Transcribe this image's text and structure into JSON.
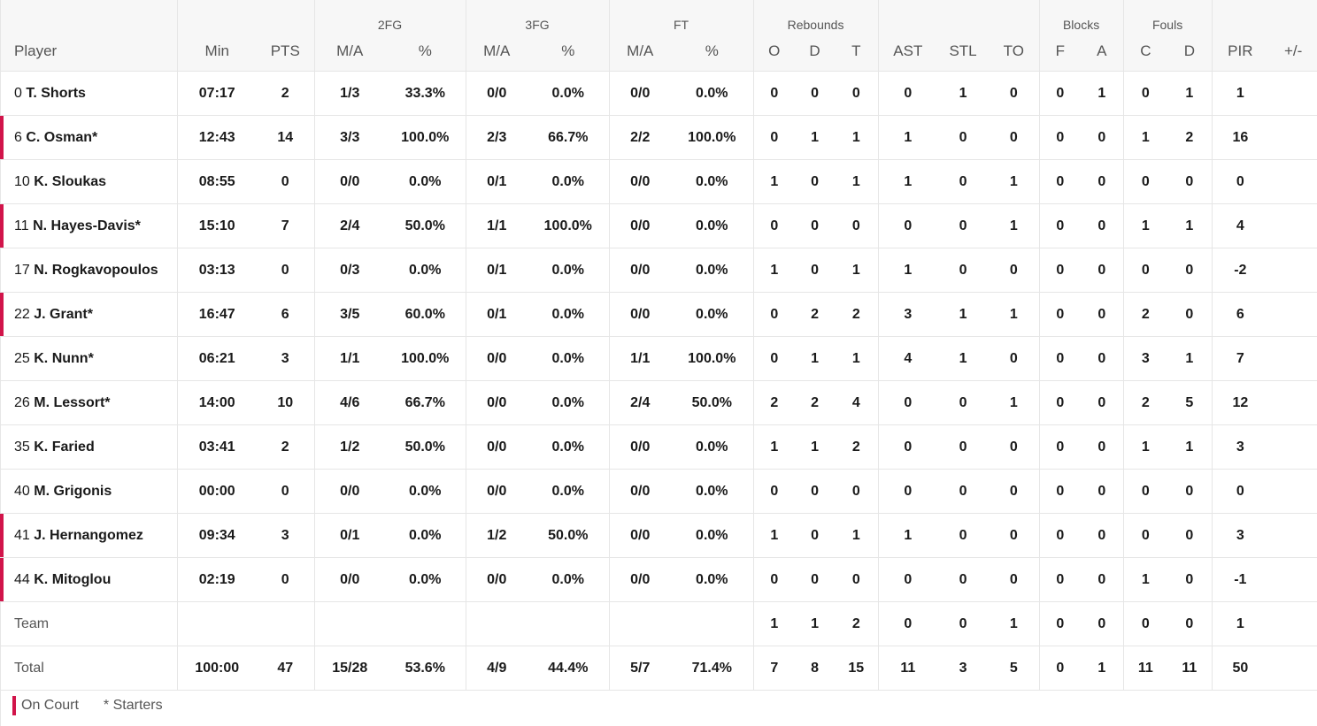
{
  "header_groups": {
    "fg2": "2FG",
    "fg3": "3FG",
    "ft": "FT",
    "rebounds": "Rebounds",
    "blocks": "Blocks",
    "fouls": "Fouls"
  },
  "columns": {
    "player": "Player",
    "min": "Min",
    "pts": "PTS",
    "fg2_ma": "M/A",
    "fg2_pct": "%",
    "fg3_ma": "M/A",
    "fg3_pct": "%",
    "ft_ma": "M/A",
    "ft_pct": "%",
    "reb_o": "O",
    "reb_d": "D",
    "reb_t": "T",
    "ast": "AST",
    "stl": "STL",
    "to": "TO",
    "blk_f": "F",
    "blk_a": "A",
    "foul_c": "C",
    "foul_d": "D",
    "pir": "PIR",
    "pm": "+/-"
  },
  "rows": [
    {
      "num": "0",
      "name": "T. Shorts",
      "oncourt": false,
      "min": "07:17",
      "pts": "2",
      "fg2_ma": "1/3",
      "fg2_pct": "33.3%",
      "fg3_ma": "0/0",
      "fg3_pct": "0.0%",
      "ft_ma": "0/0",
      "ft_pct": "0.0%",
      "reb_o": "0",
      "reb_d": "0",
      "reb_t": "0",
      "ast": "0",
      "stl": "1",
      "to": "0",
      "blk_f": "0",
      "blk_a": "1",
      "foul_c": "0",
      "foul_d": "1",
      "pir": "1",
      "pm": ""
    },
    {
      "num": "6",
      "name": "C. Osman*",
      "oncourt": true,
      "min": "12:43",
      "pts": "14",
      "fg2_ma": "3/3",
      "fg2_pct": "100.0%",
      "fg3_ma": "2/3",
      "fg3_pct": "66.7%",
      "ft_ma": "2/2",
      "ft_pct": "100.0%",
      "reb_o": "0",
      "reb_d": "1",
      "reb_t": "1",
      "ast": "1",
      "stl": "0",
      "to": "0",
      "blk_f": "0",
      "blk_a": "0",
      "foul_c": "1",
      "foul_d": "2",
      "pir": "16",
      "pm": ""
    },
    {
      "num": "10",
      "name": "K. Sloukas",
      "oncourt": false,
      "min": "08:55",
      "pts": "0",
      "fg2_ma": "0/0",
      "fg2_pct": "0.0%",
      "fg3_ma": "0/1",
      "fg3_pct": "0.0%",
      "ft_ma": "0/0",
      "ft_pct": "0.0%",
      "reb_o": "1",
      "reb_d": "0",
      "reb_t": "1",
      "ast": "1",
      "stl": "0",
      "to": "1",
      "blk_f": "0",
      "blk_a": "0",
      "foul_c": "0",
      "foul_d": "0",
      "pir": "0",
      "pm": ""
    },
    {
      "num": "11",
      "name": "N. Hayes-Davis*",
      "oncourt": true,
      "min": "15:10",
      "pts": "7",
      "fg2_ma": "2/4",
      "fg2_pct": "50.0%",
      "fg3_ma": "1/1",
      "fg3_pct": "100.0%",
      "ft_ma": "0/0",
      "ft_pct": "0.0%",
      "reb_o": "0",
      "reb_d": "0",
      "reb_t": "0",
      "ast": "0",
      "stl": "0",
      "to": "1",
      "blk_f": "0",
      "blk_a": "0",
      "foul_c": "1",
      "foul_d": "1",
      "pir": "4",
      "pm": ""
    },
    {
      "num": "17",
      "name": "N. Rogkavopoulos",
      "oncourt": false,
      "min": "03:13",
      "pts": "0",
      "fg2_ma": "0/3",
      "fg2_pct": "0.0%",
      "fg3_ma": "0/1",
      "fg3_pct": "0.0%",
      "ft_ma": "0/0",
      "ft_pct": "0.0%",
      "reb_o": "1",
      "reb_d": "0",
      "reb_t": "1",
      "ast": "1",
      "stl": "0",
      "to": "0",
      "blk_f": "0",
      "blk_a": "0",
      "foul_c": "0",
      "foul_d": "0",
      "pir": "-2",
      "pm": ""
    },
    {
      "num": "22",
      "name": "J. Grant*",
      "oncourt": true,
      "min": "16:47",
      "pts": "6",
      "fg2_ma": "3/5",
      "fg2_pct": "60.0%",
      "fg3_ma": "0/1",
      "fg3_pct": "0.0%",
      "ft_ma": "0/0",
      "ft_pct": "0.0%",
      "reb_o": "0",
      "reb_d": "2",
      "reb_t": "2",
      "ast": "3",
      "stl": "1",
      "to": "1",
      "blk_f": "0",
      "blk_a": "0",
      "foul_c": "2",
      "foul_d": "0",
      "pir": "6",
      "pm": ""
    },
    {
      "num": "25",
      "name": "K. Nunn*",
      "oncourt": false,
      "min": "06:21",
      "pts": "3",
      "fg2_ma": "1/1",
      "fg2_pct": "100.0%",
      "fg3_ma": "0/0",
      "fg3_pct": "0.0%",
      "ft_ma": "1/1",
      "ft_pct": "100.0%",
      "reb_o": "0",
      "reb_d": "1",
      "reb_t": "1",
      "ast": "4",
      "stl": "1",
      "to": "0",
      "blk_f": "0",
      "blk_a": "0",
      "foul_c": "3",
      "foul_d": "1",
      "pir": "7",
      "pm": ""
    },
    {
      "num": "26",
      "name": "M. Lessort*",
      "oncourt": false,
      "min": "14:00",
      "pts": "10",
      "fg2_ma": "4/6",
      "fg2_pct": "66.7%",
      "fg3_ma": "0/0",
      "fg3_pct": "0.0%",
      "ft_ma": "2/4",
      "ft_pct": "50.0%",
      "reb_o": "2",
      "reb_d": "2",
      "reb_t": "4",
      "ast": "0",
      "stl": "0",
      "to": "1",
      "blk_f": "0",
      "blk_a": "0",
      "foul_c": "2",
      "foul_d": "5",
      "pir": "12",
      "pm": ""
    },
    {
      "num": "35",
      "name": "K. Faried",
      "oncourt": false,
      "min": "03:41",
      "pts": "2",
      "fg2_ma": "1/2",
      "fg2_pct": "50.0%",
      "fg3_ma": "0/0",
      "fg3_pct": "0.0%",
      "ft_ma": "0/0",
      "ft_pct": "0.0%",
      "reb_o": "1",
      "reb_d": "1",
      "reb_t": "2",
      "ast": "0",
      "stl": "0",
      "to": "0",
      "blk_f": "0",
      "blk_a": "0",
      "foul_c": "1",
      "foul_d": "1",
      "pir": "3",
      "pm": ""
    },
    {
      "num": "40",
      "name": "M. Grigonis",
      "oncourt": false,
      "min": "00:00",
      "pts": "0",
      "fg2_ma": "0/0",
      "fg2_pct": "0.0%",
      "fg3_ma": "0/0",
      "fg3_pct": "0.0%",
      "ft_ma": "0/0",
      "ft_pct": "0.0%",
      "reb_o": "0",
      "reb_d": "0",
      "reb_t": "0",
      "ast": "0",
      "stl": "0",
      "to": "0",
      "blk_f": "0",
      "blk_a": "0",
      "foul_c": "0",
      "foul_d": "0",
      "pir": "0",
      "pm": ""
    },
    {
      "num": "41",
      "name": "J. Hernangomez",
      "oncourt": true,
      "min": "09:34",
      "pts": "3",
      "fg2_ma": "0/1",
      "fg2_pct": "0.0%",
      "fg3_ma": "1/2",
      "fg3_pct": "50.0%",
      "ft_ma": "0/0",
      "ft_pct": "0.0%",
      "reb_o": "1",
      "reb_d": "0",
      "reb_t": "1",
      "ast": "1",
      "stl": "0",
      "to": "0",
      "blk_f": "0",
      "blk_a": "0",
      "foul_c": "0",
      "foul_d": "0",
      "pir": "3",
      "pm": ""
    },
    {
      "num": "44",
      "name": "K. Mitoglou",
      "oncourt": true,
      "min": "02:19",
      "pts": "0",
      "fg2_ma": "0/0",
      "fg2_pct": "0.0%",
      "fg3_ma": "0/0",
      "fg3_pct": "0.0%",
      "ft_ma": "0/0",
      "ft_pct": "0.0%",
      "reb_o": "0",
      "reb_d": "0",
      "reb_t": "0",
      "ast": "0",
      "stl": "0",
      "to": "0",
      "blk_f": "0",
      "blk_a": "0",
      "foul_c": "1",
      "foul_d": "0",
      "pir": "-1",
      "pm": ""
    }
  ],
  "team_row": {
    "label": "Team",
    "reb_o": "1",
    "reb_d": "1",
    "reb_t": "2",
    "ast": "0",
    "stl": "0",
    "to": "1",
    "blk_f": "0",
    "blk_a": "0",
    "foul_c": "0",
    "foul_d": "0",
    "pir": "1"
  },
  "total_row": {
    "label": "Total",
    "min": "100:00",
    "pts": "47",
    "fg2_ma": "15/28",
    "fg2_pct": "53.6%",
    "fg3_ma": "4/9",
    "fg3_pct": "44.4%",
    "ft_ma": "5/7",
    "ft_pct": "71.4%",
    "reb_o": "7",
    "reb_d": "8",
    "reb_t": "15",
    "ast": "11",
    "stl": "3",
    "to": "5",
    "blk_f": "0",
    "blk_a": "1",
    "foul_c": "11",
    "foul_d": "11",
    "pir": "50"
  },
  "legend": {
    "on_court": "On Court",
    "starters": "* Starters"
  },
  "colors": {
    "accent": "#d1144a",
    "header_bg": "#f7f7f7",
    "border": "#e6e6e6"
  }
}
